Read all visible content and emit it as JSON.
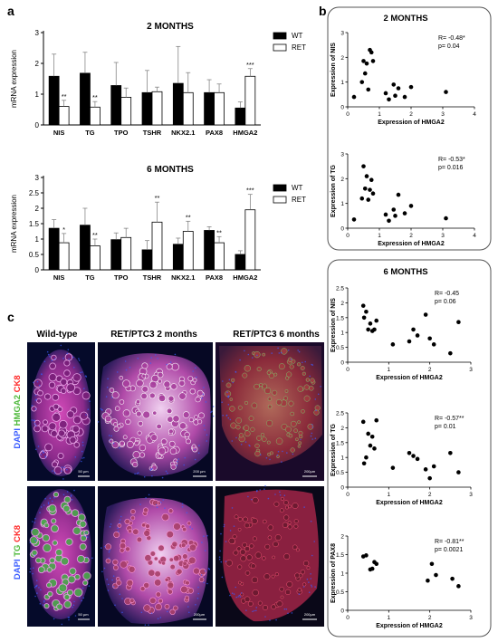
{
  "panel_labels": {
    "a": "a",
    "b": "b",
    "c": "c"
  },
  "chart_data": [
    {
      "type": "bar",
      "panel": "a",
      "title": "2 MONTHS",
      "ylabel": "mRNA expression",
      "ylim": [
        0,
        3
      ],
      "yticks": [
        "0",
        "1",
        "2",
        "3"
      ],
      "categories": [
        "NIS",
        "TG",
        "TPO",
        "TSHR",
        "NKX2.1",
        "PAX8",
        "HMGA2"
      ],
      "series": [
        {
          "name": "WT",
          "color": "#000000",
          "values": [
            1.58,
            1.68,
            1.28,
            1.05,
            1.35,
            1.05,
            0.55
          ],
          "errors": [
            0.72,
            0.68,
            0.75,
            0.72,
            1.2,
            0.42,
            0.2
          ]
        },
        {
          "name": "RET",
          "color": "#ffffff",
          "values": [
            0.6,
            0.58,
            0.9,
            1.08,
            1.05,
            1.05,
            1.58
          ],
          "errors": [
            0.2,
            0.18,
            0.3,
            0.15,
            0.65,
            0.28,
            0.25
          ]
        }
      ],
      "significance": [
        "**",
        "**",
        "",
        "",
        "",
        "",
        "***"
      ]
    },
    {
      "type": "bar",
      "panel": "a",
      "title": "6 MONTHS",
      "ylabel": "mRNA expression",
      "ylim": [
        0,
        3
      ],
      "yticks": [
        "0",
        "0.5",
        "1",
        "1.5",
        "2",
        "2.5",
        "3"
      ],
      "categories": [
        "NIS",
        "TG",
        "TPO",
        "TSHR",
        "NKX2.1",
        "PAX8",
        "HMGA2"
      ],
      "series": [
        {
          "name": "WT",
          "color": "#000000",
          "values": [
            1.35,
            1.45,
            0.98,
            0.65,
            0.83,
            1.28,
            0.5
          ],
          "errors": [
            0.28,
            0.55,
            0.22,
            0.3,
            0.2,
            0.12,
            0.12
          ]
        },
        {
          "name": "RET",
          "color": "#ffffff",
          "values": [
            0.88,
            0.78,
            1.05,
            1.55,
            1.25,
            0.88,
            1.95
          ],
          "errors": [
            0.3,
            0.22,
            0.3,
            0.65,
            0.33,
            0.2,
            0.5
          ]
        }
      ],
      "significance": [
        "*",
        "**",
        "",
        "**",
        "**",
        "**",
        "***"
      ]
    },
    {
      "type": "scatter",
      "panel": "b",
      "group_title": "2 MONTHS",
      "xlabel": "Expression of HMGA2",
      "ylabel": "Expression of NIS",
      "xlim": [
        0,
        4
      ],
      "ylim": [
        0,
        3
      ],
      "xticks": [
        "0",
        "1",
        "2",
        "3",
        "4"
      ],
      "yticks": [
        "0",
        "1",
        "2",
        "3"
      ],
      "stats": [
        "R= -0.48*",
        "p= 0.04"
      ],
      "x": [
        0.2,
        0.45,
        0.5,
        0.55,
        0.6,
        0.65,
        0.7,
        0.75,
        0.8,
        1.2,
        1.3,
        1.45,
        1.5,
        1.6,
        1.8,
        2.0,
        3.1
      ],
      "y": [
        0.4,
        1.0,
        1.85,
        1.35,
        1.75,
        0.7,
        2.3,
        2.2,
        1.85,
        0.55,
        0.3,
        0.9,
        0.45,
        0.75,
        0.4,
        0.8,
        0.6
      ]
    },
    {
      "type": "scatter",
      "panel": "b",
      "group_title": "2 MONTHS",
      "xlabel": "Expression of HMGA2",
      "ylabel": "Expression of TG",
      "xlim": [
        0,
        4
      ],
      "ylim": [
        0,
        3
      ],
      "xticks": [
        "0",
        "1",
        "2",
        "3",
        "4"
      ],
      "yticks": [
        "0",
        "1",
        "2",
        "3"
      ],
      "stats": [
        "R= -0.53*",
        "p= 0.016"
      ],
      "x": [
        0.2,
        0.45,
        0.5,
        0.55,
        0.6,
        0.65,
        0.7,
        0.75,
        0.8,
        1.2,
        1.3,
        1.45,
        1.5,
        1.6,
        1.8,
        2.0,
        3.1
      ],
      "y": [
        0.35,
        1.2,
        2.5,
        1.6,
        2.1,
        1.15,
        1.55,
        1.95,
        1.4,
        0.55,
        0.3,
        0.75,
        0.5,
        1.35,
        0.6,
        0.9,
        0.4
      ]
    },
    {
      "type": "scatter",
      "panel": "b",
      "group_title": "6 MONTHS",
      "xlabel": "Expression of HMGA2",
      "ylabel": "Expression of NIS",
      "xlim": [
        0,
        3
      ],
      "ylim": [
        0,
        2.5
      ],
      "xticks": [
        "0",
        "1",
        "2",
        "3"
      ],
      "yticks": [
        "0",
        "0.5",
        "1",
        "1.5",
        "2",
        "2.5"
      ],
      "stats": [
        "R= -0.45",
        "p= 0.06"
      ],
      "x": [
        0.38,
        0.4,
        0.45,
        0.5,
        0.55,
        0.6,
        0.65,
        0.7,
        1.1,
        1.5,
        1.6,
        1.7,
        1.9,
        2.0,
        2.1,
        2.5,
        2.7
      ],
      "y": [
        1.9,
        1.5,
        1.7,
        1.1,
        1.3,
        1.05,
        1.1,
        1.4,
        0.6,
        0.7,
        1.1,
        0.9,
        1.6,
        0.8,
        0.6,
        0.3,
        1.35
      ]
    },
    {
      "type": "scatter",
      "panel": "b",
      "group_title": "6 MONTHS",
      "xlabel": "Expression of HMGA2",
      "ylabel": "Expression of TG",
      "xlim": [
        0,
        3
      ],
      "ylim": [
        0,
        2.5
      ],
      "xticks": [
        "0",
        "1",
        "2",
        "3"
      ],
      "yticks": [
        "0",
        "0.5",
        "1",
        "1.5",
        "2",
        "2.5"
      ],
      "stats": [
        "R= -0.57**",
        "p= 0.01"
      ],
      "x": [
        0.38,
        0.4,
        0.45,
        0.5,
        0.55,
        0.6,
        0.65,
        0.7,
        1.1,
        1.5,
        1.6,
        1.7,
        1.9,
        2.0,
        2.1,
        2.5,
        2.7
      ],
      "y": [
        2.2,
        0.8,
        1.0,
        1.8,
        1.4,
        1.7,
        1.3,
        2.25,
        0.65,
        1.15,
        1.05,
        0.95,
        0.6,
        0.3,
        0.7,
        1.15,
        0.5
      ]
    },
    {
      "type": "scatter",
      "panel": "b",
      "group_title": "6 MONTHS",
      "xlabel": "Expression of HMGA2",
      "ylabel": "Expression of PAX8",
      "xlim": [
        0,
        3
      ],
      "ylim": [
        0,
        2
      ],
      "xticks": [
        "0",
        "1",
        "2",
        "3"
      ],
      "yticks": [
        "0",
        "0.5",
        "1",
        "1.5",
        "2"
      ],
      "stats": [
        "R= -0.81**",
        "p= 0.0021"
      ],
      "x": [
        0.38,
        0.45,
        0.55,
        0.6,
        0.65,
        0.7,
        1.95,
        2.05,
        2.15,
        2.55,
        2.7
      ],
      "y": [
        1.45,
        1.48,
        1.1,
        1.12,
        1.3,
        1.25,
        0.8,
        1.25,
        0.95,
        0.85,
        0.65
      ]
    }
  ],
  "micrographs": {
    "column_titles": [
      "Wild-type",
      "RET/PTC3  2 months",
      "RET/PTC3  6 months"
    ],
    "row1_stain": {
      "dapi": "DAPI",
      "marker": "HMGA2",
      "ck8": "CK8"
    },
    "row2_stain": {
      "dapi": "DAPI",
      "marker": "TG",
      "ck8": "CK8"
    },
    "scale_bars": [
      "50 µm",
      "200 µm",
      "200µm",
      "50 µm",
      "200µm",
      "200µm"
    ],
    "colors": {
      "dapi": "#3a5cff",
      "marker": "#6fd64a",
      "ck8": "#ff2a2a"
    }
  }
}
